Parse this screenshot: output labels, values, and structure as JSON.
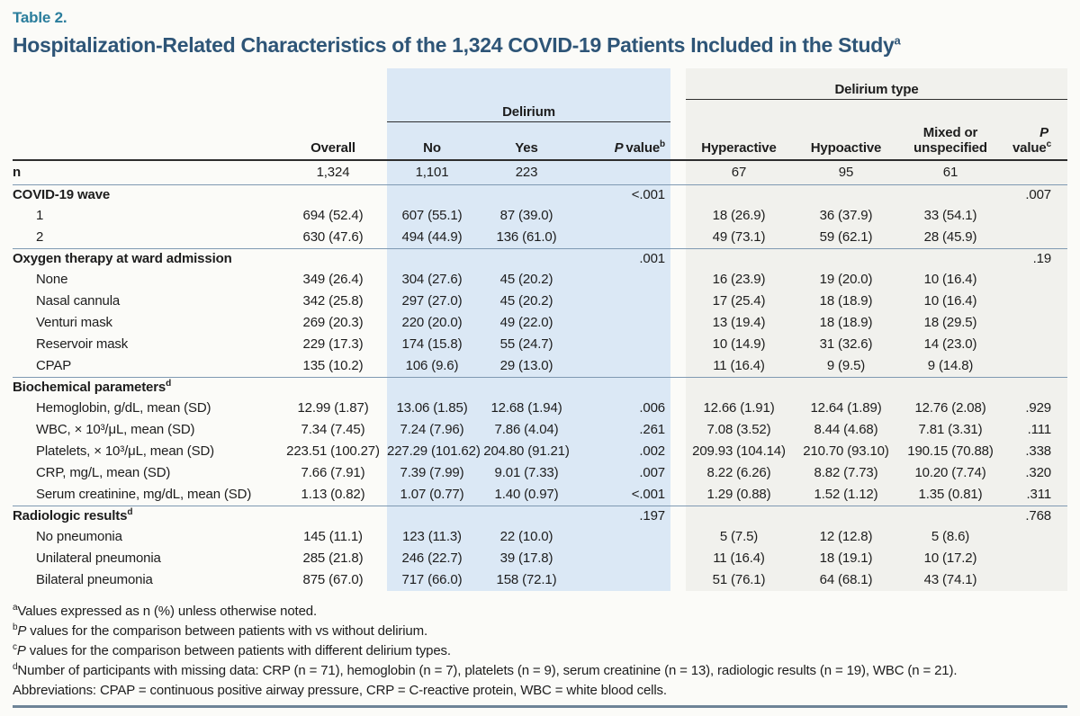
{
  "page": {
    "eyebrow": "Table 2.",
    "title": "Hospitalization-Related Characteristics of the 1,324 COVID-19 Patients Included in the Study",
    "title_superscript": "a"
  },
  "colors": {
    "accent_teal": "#2a7d9c",
    "title_navy": "#2e5577",
    "delirium_band_blue": "#dbe8f5",
    "delirium_type_band_gray": "#f1f1ed",
    "header_rule_dark": "#2e2e2e",
    "section_rule_blue_gray": "#7f99b2",
    "bottom_rule_blue_gray": "#6e8497"
  },
  "table": {
    "groups": {
      "delirium": "Delirium",
      "delirium_type": "Delirium type"
    },
    "columns": {
      "overall": "Overall",
      "no": "No",
      "yes": "Yes",
      "p_italic": "P",
      "p_value_word": "value",
      "pb_sup": "b",
      "pc_sup": "c",
      "hyperactive": "Hyperactive",
      "hypoactive": "Hypoactive",
      "mixed_line1": "Mixed or",
      "mixed_line2": "unspecified"
    },
    "n_row": {
      "label": "n",
      "overall": "1,324",
      "no": "1,101",
      "yes": "223",
      "pb": "",
      "hyperactive": "67",
      "hypoactive": "95",
      "mixed": "61",
      "pc": ""
    },
    "sections": [
      {
        "label": "COVID-19 wave",
        "sup": "",
        "pb": "<.001",
        "pc": ".007",
        "rows": [
          {
            "label": "1",
            "overall": "694 (52.4)",
            "no": "607 (55.1)",
            "yes": "87 (39.0)",
            "pb": "",
            "hyperactive": "18 (26.9)",
            "hypoactive": "36 (37.9)",
            "mixed": "33 (54.1)",
            "pc": ""
          },
          {
            "label": "2",
            "overall": "630 (47.6)",
            "no": "494 (44.9)",
            "yes": "136 (61.0)",
            "pb": "",
            "hyperactive": "49 (73.1)",
            "hypoactive": "59 (62.1)",
            "mixed": "28 (45.9)",
            "pc": ""
          }
        ]
      },
      {
        "label": "Oxygen therapy at ward admission",
        "sup": "",
        "pb": ".001",
        "pc": ".19",
        "rows": [
          {
            "label": "None",
            "overall": "349 (26.4)",
            "no": "304 (27.6)",
            "yes": "45 (20.2)",
            "pb": "",
            "hyperactive": "16 (23.9)",
            "hypoactive": "19 (20.0)",
            "mixed": "10 (16.4)",
            "pc": ""
          },
          {
            "label": "Nasal cannula",
            "overall": "342 (25.8)",
            "no": "297 (27.0)",
            "yes": "45 (20.2)",
            "pb": "",
            "hyperactive": "17 (25.4)",
            "hypoactive": "18 (18.9)",
            "mixed": "10 (16.4)",
            "pc": ""
          },
          {
            "label": "Venturi mask",
            "overall": "269 (20.3)",
            "no": "220 (20.0)",
            "yes": "49 (22.0)",
            "pb": "",
            "hyperactive": "13 (19.4)",
            "hypoactive": "18 (18.9)",
            "mixed": "18 (29.5)",
            "pc": ""
          },
          {
            "label": "Reservoir mask",
            "overall": "229 (17.3)",
            "no": "174 (15.8)",
            "yes": "55 (24.7)",
            "pb": "",
            "hyperactive": "10 (14.9)",
            "hypoactive": "31 (32.6)",
            "mixed": "14 (23.0)",
            "pc": ""
          },
          {
            "label": "CPAP",
            "overall": "135 (10.2)",
            "no": "106 (9.6)",
            "yes": "29 (13.0)",
            "pb": "",
            "hyperactive": "11 (16.4)",
            "hypoactive": "9 (9.5)",
            "mixed": "9 (14.8)",
            "pc": ""
          }
        ]
      },
      {
        "label": "Biochemical parameters",
        "sup": "d",
        "pb": "",
        "pc": "",
        "rows": [
          {
            "label": "Hemoglobin, g/dL, mean (SD)",
            "overall": "12.99 (1.87)",
            "no": "13.06 (1.85)",
            "yes": "12.68 (1.94)",
            "pb": ".006",
            "hyperactive": "12.66 (1.91)",
            "hypoactive": "12.64 (1.89)",
            "mixed": "12.76 (2.08)",
            "pc": ".929"
          },
          {
            "label": "WBC, × 10³/μL, mean (SD)",
            "overall": "7.34 (7.45)",
            "no": "7.24 (7.96)",
            "yes": "7.86 (4.04)",
            "pb": ".261",
            "hyperactive": "7.08 (3.52)",
            "hypoactive": "8.44 (4.68)",
            "mixed": "7.81 (3.31)",
            "pc": ".111"
          },
          {
            "label": "Platelets, × 10³/μL, mean (SD)",
            "overall": "223.51 (100.27)",
            "no": "227.29 (101.62)",
            "yes": "204.80 (91.21)",
            "pb": ".002",
            "hyperactive": "209.93 (104.14)",
            "hypoactive": "210.70 (93.10)",
            "mixed": "190.15 (70.88)",
            "pc": ".338"
          },
          {
            "label": "CRP, mg/L, mean (SD)",
            "overall": "7.66 (7.91)",
            "no": "7.39 (7.99)",
            "yes": "9.01 (7.33)",
            "pb": ".007",
            "hyperactive": "8.22 (6.26)",
            "hypoactive": "8.82 (7.73)",
            "mixed": "10.20 (7.74)",
            "pc": ".320"
          },
          {
            "label": "Serum creatinine, mg/dL, mean (SD)",
            "overall": "1.13 (0.82)",
            "no": "1.07 (0.77)",
            "yes": "1.40 (0.97)",
            "pb": "<.001",
            "hyperactive": "1.29 (0.88)",
            "hypoactive": "1.52 (1.12)",
            "mixed": "1.35 (0.81)",
            "pc": ".311"
          }
        ]
      },
      {
        "label": "Radiologic results",
        "sup": "d",
        "pb": ".197",
        "pc": ".768",
        "rows": [
          {
            "label": "No pneumonia",
            "overall": "145 (11.1)",
            "no": "123 (11.3)",
            "yes": "22 (10.0)",
            "pb": "",
            "hyperactive": "5 (7.5)",
            "hypoactive": "12 (12.8)",
            "mixed": "5 (8.6)",
            "pc": ""
          },
          {
            "label": "Unilateral pneumonia",
            "overall": "285 (21.8)",
            "no": "246 (22.7)",
            "yes": "39 (17.8)",
            "pb": "",
            "hyperactive": "11 (16.4)",
            "hypoactive": "18 (19.1)",
            "mixed": "10 (17.2)",
            "pc": ""
          },
          {
            "label": "Bilateral pneumonia",
            "overall": "875 (67.0)",
            "no": "717 (66.0)",
            "yes": "158 (72.1)",
            "pb": "",
            "hyperactive": "51 (76.1)",
            "hypoactive": "64 (68.1)",
            "mixed": "43 (74.1)",
            "pc": ""
          }
        ]
      }
    ]
  },
  "footnotes": [
    {
      "marker": "a",
      "lead_italic": "",
      "text": "Values expressed as n (%) unless otherwise noted."
    },
    {
      "marker": "b",
      "lead_italic": "P",
      "text": " values for the comparison between patients with vs without delirium."
    },
    {
      "marker": "c",
      "lead_italic": "P",
      "text": " values for the comparison between patients with different delirium types."
    },
    {
      "marker": "d",
      "lead_italic": "",
      "text": "Number of participants with missing data: CRP (n = 71), hemoglobin (n = 7), platelets (n = 9), serum creatinine (n = 13), radiologic results (n = 19), WBC (n = 21)."
    },
    {
      "marker": "",
      "lead_italic": "",
      "text": "Abbreviations: CPAP = continuous positive airway pressure, CRP = C-reactive protein, WBC = white blood cells."
    }
  ]
}
